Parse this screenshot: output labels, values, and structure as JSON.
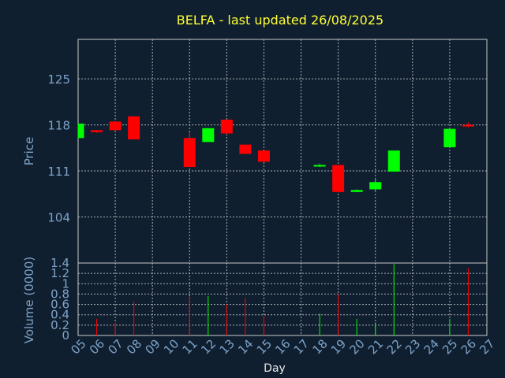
{
  "chart_data": {
    "type": "candlestick",
    "title": "BELFA - last updated 26/08/2025",
    "ylabel": "Price",
    "volume_ylabel": "Volume (0000)",
    "xlabel": "Day",
    "x_ticks": [
      "05",
      "06",
      "07",
      "08",
      "09",
      "10",
      "11",
      "12",
      "13",
      "14",
      "15",
      "16",
      "17",
      "18",
      "19",
      "20",
      "21",
      "22",
      "23",
      "24",
      "25",
      "26",
      "27"
    ],
    "price_ticks": [
      104,
      111,
      118,
      125
    ],
    "price_ylim": [
      97,
      131
    ],
    "volume_ticks": [
      "0",
      "0.2",
      "0.4",
      "0.6",
      "0.8",
      "1",
      "1.2",
      "1.4"
    ],
    "volume_ylim": [
      0,
      1.4
    ],
    "grid": true,
    "colors": {
      "up": "#00ff00",
      "down": "#ff0000",
      "background": "#0f1f30",
      "grid": "#c8c8c8",
      "text": "#7ea3c8",
      "title": "#ffff33"
    },
    "candles": [
      {
        "day": 5,
        "open": 116.0,
        "high": 118.2,
        "low": 116.0,
        "close": 118.2,
        "volume": 0.0
      },
      {
        "day": 6,
        "open": 117.2,
        "high": 117.2,
        "low": 116.8,
        "close": 116.9,
        "volume": 0.32
      },
      {
        "day": 7,
        "open": 118.5,
        "high": 118.5,
        "low": 117.1,
        "close": 117.2,
        "volume": 0.25
      },
      {
        "day": 8,
        "open": 119.3,
        "high": 119.3,
        "low": 115.8,
        "close": 115.8,
        "volume": 0.66
      },
      {
        "day": 11,
        "open": 116.0,
        "high": 116.9,
        "low": 111.6,
        "close": 111.6,
        "volume": 0.76
      },
      {
        "day": 12,
        "open": 115.4,
        "high": 117.5,
        "low": 115.4,
        "close": 117.5,
        "volume": 0.76
      },
      {
        "day": 13,
        "open": 118.8,
        "high": 118.8,
        "low": 116.6,
        "close": 116.7,
        "volume": 0.6
      },
      {
        "day": 14,
        "open": 115.0,
        "high": 115.0,
        "low": 113.6,
        "close": 113.6,
        "volume": 0.72
      },
      {
        "day": 15,
        "open": 114.1,
        "high": 114.1,
        "low": 112.3,
        "close": 112.4,
        "volume": 0.38
      },
      {
        "day": 18,
        "open": 111.8,
        "high": 112.1,
        "low": 111.6,
        "close": 111.9,
        "volume": 0.42
      },
      {
        "day": 19,
        "open": 111.9,
        "high": 111.9,
        "low": 107.7,
        "close": 107.8,
        "volume": 0.8
      },
      {
        "day": 20,
        "open": 107.8,
        "high": 108.2,
        "low": 107.8,
        "close": 108.1,
        "volume": 0.32
      },
      {
        "day": 21,
        "open": 108.2,
        "high": 109.8,
        "low": 108.0,
        "close": 109.3,
        "volume": 0.25
      },
      {
        "day": 22,
        "open": 110.9,
        "high": 114.1,
        "low": 110.9,
        "close": 114.1,
        "volume": 1.38
      },
      {
        "day": 25,
        "open": 114.6,
        "high": 117.4,
        "low": 114.6,
        "close": 117.4,
        "volume": 0.32
      },
      {
        "day": 26,
        "open": 118.0,
        "high": 118.4,
        "low": 117.6,
        "close": 117.8,
        "volume": 1.3
      }
    ]
  }
}
